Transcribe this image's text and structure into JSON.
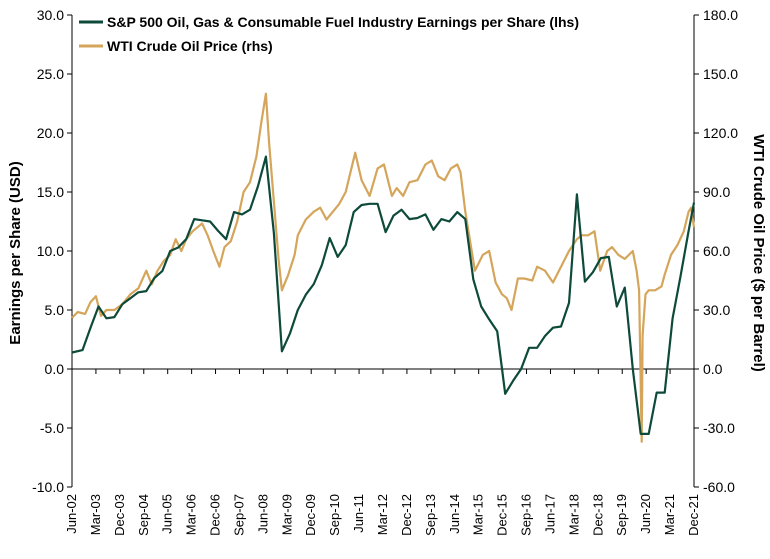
{
  "chart_data": {
    "type": "line",
    "legend_position": "top-left",
    "grid": false,
    "ylabel": "Earnings per Share (USD)",
    "y2label": "WTI Crude Oil Price ($ per Barrel)",
    "ylim": [
      -10,
      30
    ],
    "y2lim": [
      -60,
      180
    ],
    "yticks": [
      "30.0",
      "25.0",
      "20.0",
      "15.0",
      "10.0",
      "5.0",
      "0.0",
      "-5.0",
      "-10.0"
    ],
    "y2ticks": [
      "180.0",
      "150.0",
      "120.0",
      "90.0",
      "60.0",
      "30.0",
      "0.0",
      "-30.0",
      "-60.0"
    ],
    "xticks": [
      "Jun-02",
      "Mar-03",
      "Dec-03",
      "Sep-04",
      "Jun-05",
      "Mar-06",
      "Dec-06",
      "Sep-07",
      "Jun-08",
      "Mar-09",
      "Dec-09",
      "Sep-10",
      "Jun-11",
      "Mar-12",
      "Dec-12",
      "Sep-13",
      "Jun-14",
      "Mar-15",
      "Dec-15",
      "Sep-16",
      "Jun-17",
      "Mar-18",
      "Dec-18",
      "Sep-19",
      "Jun-20",
      "Mar-21",
      "Dec-21"
    ],
    "series": [
      {
        "name": "S&P 500 Oil, Gas & Consumable Fuel Industry Earnings per Share (lhs)",
        "axis": "left",
        "color": "#0d4a3a",
        "x": [
          2002.42,
          2002.75,
          2003.0,
          2003.25,
          2003.5,
          2003.75,
          2004.0,
          2004.25,
          2004.5,
          2004.75,
          2005.0,
          2005.25,
          2005.5,
          2005.75,
          2006.0,
          2006.25,
          2006.5,
          2006.75,
          2007.0,
          2007.25,
          2007.5,
          2007.75,
          2008.0,
          2008.25,
          2008.5,
          2008.75,
          2009.0,
          2009.25,
          2009.5,
          2009.75,
          2010.0,
          2010.25,
          2010.5,
          2010.75,
          2011.0,
          2011.25,
          2011.5,
          2011.75,
          2012.0,
          2012.25,
          2012.5,
          2012.75,
          2013.0,
          2013.25,
          2013.5,
          2013.75,
          2014.0,
          2014.25,
          2014.5,
          2014.75,
          2015.0,
          2015.25,
          2015.5,
          2015.75,
          2016.0,
          2016.25,
          2016.5,
          2016.75,
          2017.0,
          2017.25,
          2017.5,
          2017.75,
          2018.0,
          2018.25,
          2018.5,
          2018.75,
          2019.0,
          2019.25,
          2019.5,
          2019.75,
          2020.0,
          2020.25,
          2020.5,
          2020.75,
          2021.0,
          2021.25,
          2021.5,
          2021.75,
          2021.92
        ],
        "y": [
          1.4,
          1.6,
          3.5,
          5.3,
          4.3,
          4.4,
          5.5,
          6.0,
          6.5,
          6.6,
          7.7,
          8.3,
          10.0,
          10.3,
          11.0,
          12.7,
          12.6,
          12.5,
          11.7,
          11.0,
          13.3,
          13.1,
          13.5,
          15.5,
          18.0,
          11.5,
          1.5,
          3.0,
          5.0,
          6.3,
          7.2,
          8.8,
          11.1,
          9.5,
          10.5,
          13.3,
          13.9,
          14.0,
          14.0,
          11.6,
          13.0,
          13.5,
          12.7,
          12.8,
          13.1,
          11.8,
          12.7,
          12.5,
          13.3,
          12.7,
          7.6,
          5.3,
          4.2,
          3.2,
          -2.1,
          -1.0,
          0.0,
          1.8,
          1.8,
          2.8,
          3.5,
          3.6,
          5.6,
          14.8,
          7.4,
          8.2,
          9.4,
          9.5,
          5.3,
          6.9,
          0.0,
          -5.5,
          -5.5,
          -2.0,
          -2.0,
          4.3,
          7.9,
          11.7,
          14.1
        ]
      },
      {
        "name": "WTI Crude Oil Price (rhs)",
        "axis": "right",
        "color": "#d4a55a",
        "x": [
          2002.42,
          2002.6,
          2002.83,
          2003.0,
          2003.17,
          2003.33,
          2003.5,
          2003.75,
          2004.0,
          2004.25,
          2004.5,
          2004.75,
          2004.92,
          2005.1,
          2005.3,
          2005.5,
          2005.67,
          2005.85,
          2006.0,
          2006.2,
          2006.5,
          2006.67,
          2006.85,
          2007.04,
          2007.2,
          2007.4,
          2007.6,
          2007.8,
          2008.0,
          2008.2,
          2008.35,
          2008.5,
          2008.6,
          2008.75,
          2008.9,
          2009.0,
          2009.2,
          2009.4,
          2009.5,
          2009.75,
          2010.0,
          2010.2,
          2010.4,
          2010.6,
          2010.8,
          2011.0,
          2011.3,
          2011.5,
          2011.75,
          2012.0,
          2012.2,
          2012.45,
          2012.6,
          2012.8,
          2013.0,
          2013.25,
          2013.5,
          2013.7,
          2013.9,
          2014.1,
          2014.3,
          2014.5,
          2014.6,
          2014.75,
          2014.9,
          2015.05,
          2015.3,
          2015.5,
          2015.7,
          2015.9,
          2016.05,
          2016.2,
          2016.4,
          2016.6,
          2016.85,
          2017.0,
          2017.25,
          2017.5,
          2017.75,
          2018.0,
          2018.25,
          2018.4,
          2018.6,
          2018.8,
          2018.98,
          2019.2,
          2019.35,
          2019.55,
          2019.75,
          2020.0,
          2020.12,
          2020.2,
          2020.28,
          2020.31,
          2020.4,
          2020.5,
          2020.7,
          2020.9,
          2021.0,
          2021.2,
          2021.4,
          2021.6,
          2021.75,
          2021.83,
          2021.92
        ],
        "y": [
          26,
          29,
          28,
          34,
          37,
          27,
          30,
          30,
          33,
          38,
          41,
          50,
          43,
          50,
          55,
          58,
          66,
          60,
          66,
          70,
          74,
          68,
          60,
          52,
          62,
          65,
          75,
          90,
          95,
          108,
          125,
          140,
          115,
          85,
          55,
          40,
          48,
          58,
          68,
          76,
          80,
          82,
          76,
          80,
          84,
          90,
          110,
          96,
          88,
          102,
          104,
          88,
          92,
          88,
          95,
          96,
          104,
          106,
          98,
          96,
          102,
          104,
          100,
          80,
          65,
          50,
          58,
          60,
          44,
          38,
          36,
          30,
          46,
          46,
          45,
          52,
          50,
          44,
          52,
          60,
          66,
          68,
          68,
          70,
          50,
          60,
          62,
          58,
          56,
          60,
          50,
          40,
          -37,
          17,
          38,
          40,
          40,
          42,
          48,
          58,
          63,
          70,
          80,
          82,
          72
        ]
      }
    ]
  }
}
